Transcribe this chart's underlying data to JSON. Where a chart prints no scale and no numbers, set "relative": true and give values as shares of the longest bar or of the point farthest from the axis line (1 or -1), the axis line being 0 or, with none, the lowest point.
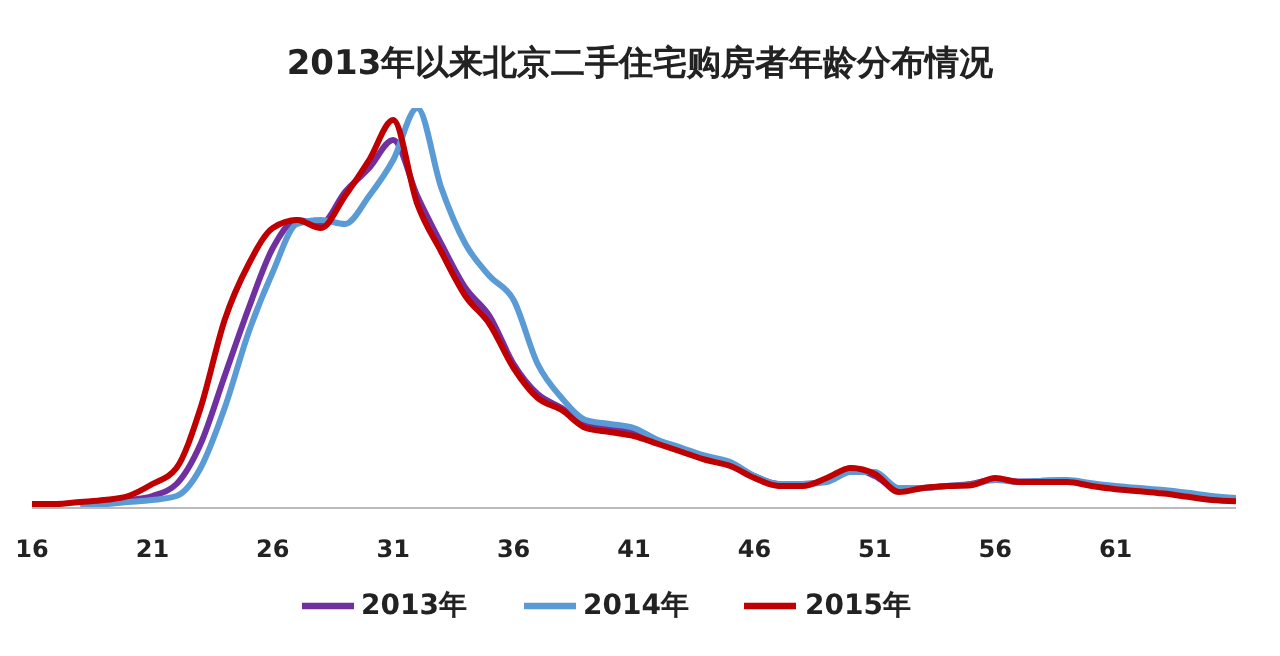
{
  "chart_data": {
    "type": "line",
    "title": "2013年以来北京二手住宅购房者年龄分布情况",
    "relative": true,
    "x": [
      16,
      17,
      18,
      19,
      20,
      21,
      22,
      23,
      24,
      25,
      26,
      27,
      28,
      29,
      30,
      31,
      32,
      33,
      34,
      35,
      36,
      37,
      38,
      39,
      40,
      41,
      42,
      43,
      44,
      45,
      46,
      47,
      48,
      49,
      50,
      51,
      52,
      53,
      54,
      55,
      56,
      57,
      58,
      59,
      60,
      61,
      62,
      63,
      64,
      65,
      66
    ],
    "xlim": [
      16,
      66
    ],
    "xticks": [
      16,
      21,
      26,
      31,
      36,
      41,
      46,
      51,
      56,
      61
    ],
    "series": [
      {
        "name": "2013年",
        "color": "#7030a0",
        "values": [
          null,
          null,
          null,
          0.015,
          0.02,
          0.03,
          0.06,
          0.16,
          0.33,
          0.5,
          0.65,
          0.72,
          0.71,
          0.79,
          0.85,
          0.92,
          0.78,
          0.66,
          0.55,
          0.48,
          0.36,
          0.285,
          0.25,
          0.21,
          0.2,
          0.19,
          0.165,
          0.145,
          0.125,
          0.11,
          0.08,
          0.06,
          0.06,
          0.07,
          0.1,
          0.08,
          0.045,
          0.05,
          0.055,
          0.06,
          0.072,
          0.066,
          0.068,
          0.07,
          null,
          null,
          null,
          null,
          null,
          null,
          null
        ]
      },
      {
        "name": "2014年",
        "color": "#5b9bd5",
        "values": [
          null,
          null,
          0.01,
          0.01,
          0.015,
          0.02,
          0.03,
          0.1,
          0.25,
          0.44,
          0.59,
          0.71,
          0.72,
          0.71,
          0.78,
          0.87,
          1.0,
          0.8,
          0.66,
          0.58,
          0.52,
          0.36,
          0.275,
          0.22,
          0.21,
          0.2,
          0.17,
          0.15,
          0.13,
          0.115,
          0.08,
          0.06,
          0.06,
          0.065,
          0.09,
          0.09,
          0.05,
          0.05,
          0.055,
          0.058,
          0.07,
          0.065,
          0.068,
          0.07,
          0.062,
          0.055,
          0.05,
          0.045,
          0.038,
          0.03,
          0.025
        ]
      },
      {
        "name": "2015年",
        "color": "#c00000",
        "values": [
          0.01,
          0.01,
          0.015,
          0.02,
          0.03,
          0.06,
          0.1,
          0.25,
          0.47,
          0.61,
          0.7,
          0.72,
          0.7,
          0.78,
          0.87,
          0.97,
          0.76,
          0.64,
          0.53,
          0.46,
          0.35,
          0.275,
          0.245,
          0.2,
          0.19,
          0.18,
          0.16,
          0.14,
          0.12,
          0.105,
          0.075,
          0.055,
          0.055,
          0.075,
          0.1,
          0.085,
          0.04,
          0.05,
          0.055,
          0.057,
          0.075,
          0.065,
          0.065,
          0.065,
          0.055,
          0.047,
          0.042,
          0.036,
          0.028,
          0.02,
          0.017
        ]
      }
    ],
    "legend": "bottom",
    "grid": false,
    "marker": "none",
    "line_style": "solid"
  }
}
